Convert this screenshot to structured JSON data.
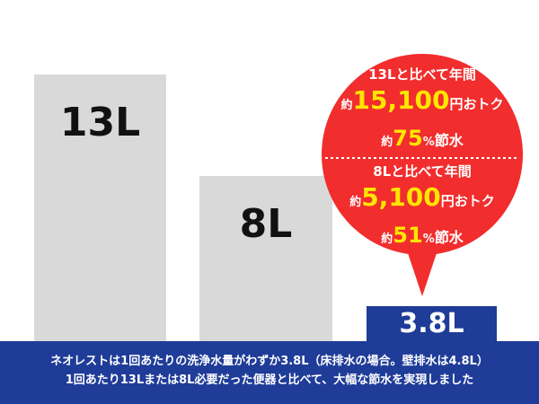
{
  "bars": [
    {
      "label": "13L"
    },
    {
      "label": "8L"
    },
    {
      "label": "3.8L"
    }
  ],
  "callout": {
    "sections": [
      {
        "heading": "13Lと比べて年間",
        "saving": {
          "prefix": "約",
          "amount": "15,100",
          "suffix": "円おトク"
        },
        "ratio": {
          "prefix": "約",
          "amount": "75",
          "unit": "%",
          "suffix": "節水"
        }
      },
      {
        "heading": "8Lと比べて年間",
        "saving": {
          "prefix": "約",
          "amount": "5,100",
          "suffix": "円おトク"
        },
        "ratio": {
          "prefix": "約",
          "amount": "51",
          "unit": "%",
          "suffix": "節水"
        }
      }
    ]
  },
  "caption": {
    "lines": [
      "ネオレストは1回あたりの洗浄水量がわずか3.8L（床排水の場合。壁排水は4.8L）",
      "1回あたり13Lまたは8L必要だった便器と比べて、大幅な節水を実現しました"
    ]
  }
}
